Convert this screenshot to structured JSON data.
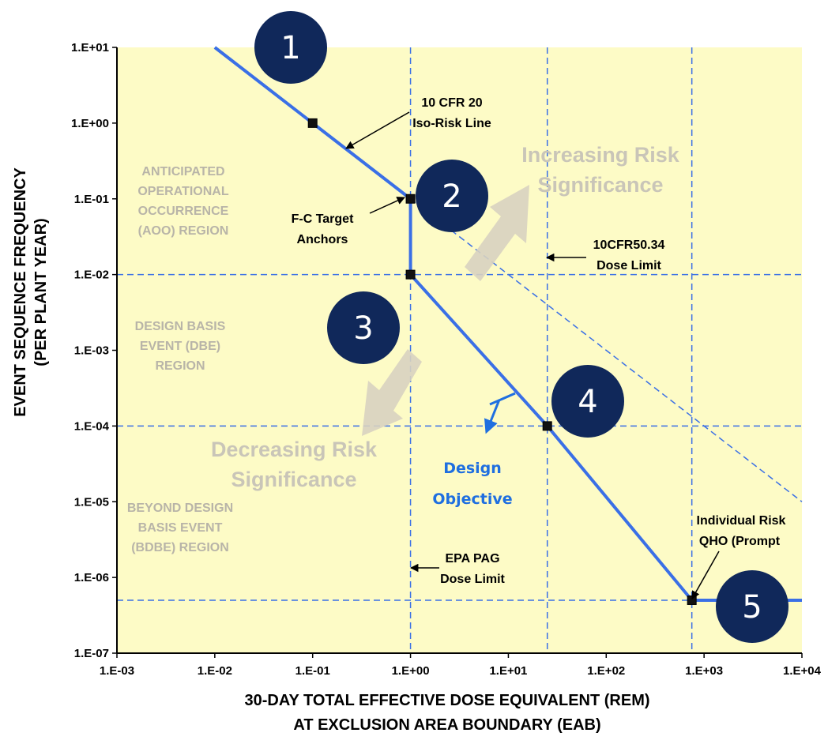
{
  "chart_data": {
    "type": "line",
    "xscale": "log",
    "yscale": "log",
    "xlim": [
      0.001,
      10000
    ],
    "ylim": [
      1e-07,
      10
    ],
    "x_ticks": [
      "1.E-03",
      "1.E-02",
      "1.E-01",
      "1.E+00",
      "1.E+01",
      "1.E+02",
      "1.E+03",
      "1.E+04"
    ],
    "y_ticks": [
      "1.E-07",
      "1.E-06",
      "1.E-05",
      "1.E-04",
      "1.E-03",
      "1.E-02",
      "1.E-01",
      "1.E+00",
      "1.E+01"
    ],
    "xlabel_line1": "30-DAY TOTAL EFFECTIVE DOSE EQUIVALENT (REM)",
    "xlabel_line2": "AT EXCLUSION AREA BOUNDARY (EAB)",
    "ylabel_line1": "EVENT SEQUENCE  FREQUENCY",
    "ylabel_line2": "(PER PLANT YEAR)",
    "series": [
      {
        "values_x": [
          0.01,
          0.1,
          1,
          1,
          25,
          750,
          10000
        ],
        "values_y": [
          10,
          1,
          0.1,
          0.01,
          0.0001,
          5e-07,
          5e-07
        ],
        "color": "#3a6fe6"
      }
    ],
    "anchor_points": [
      {
        "x": 0.1,
        "y": 1
      },
      {
        "x": 1,
        "y": 0.1
      },
      {
        "x": 1,
        "y": 0.01
      },
      {
        "x": 25,
        "y": 0.0001
      },
      {
        "x": 750,
        "y": 5e-07
      }
    ],
    "dashed_reference_lines": {
      "vertical_x": [
        1,
        25,
        750
      ],
      "horizontal_y": [
        0.01,
        0.0001,
        5e-07
      ],
      "iso_risk_extension": {
        "from_x": 1,
        "from_y": 0.1,
        "to_x": 10000,
        "to_y": 1e-05
      }
    },
    "region_labels": [
      {
        "lines": [
          "ANTICIPATED",
          "OPERATIONAL",
          "OCCURRENCE",
          "(AOO) REGION"
        ]
      },
      {
        "lines": [
          "DESIGN BASIS",
          "EVENT (DBE)",
          "REGION"
        ]
      },
      {
        "lines": [
          "BEYOND DESIGN",
          "BASIS EVENT",
          "(BDBE) REGION"
        ]
      }
    ],
    "annotations": {
      "iso_risk": [
        "10 CFR 20",
        "Iso-Risk Line"
      ],
      "fc_anchors": [
        "F-C Target",
        "Anchors"
      ],
      "dose_limit_5034": [
        "10CFR50.34",
        "Dose Limit"
      ],
      "epa_pag": [
        "EPA PAG",
        "Dose Limit"
      ],
      "qho": [
        "Individual Risk",
        "QHO (Prompt"
      ],
      "increasing": [
        "Increasing Risk",
        "Significance"
      ],
      "decreasing": [
        "Decreasing Risk",
        "Significance"
      ],
      "design_objective": [
        "Design",
        "Objective"
      ]
    },
    "numbered_markers": [
      "1",
      "2",
      "3",
      "4",
      "5"
    ],
    "colors": {
      "plot_bg": "#fdfbc6",
      "line": "#3a6fe6",
      "dashed": "#3a6fe6",
      "marker_circle": "#10285a",
      "arrow": "#d8d2c0"
    }
  }
}
